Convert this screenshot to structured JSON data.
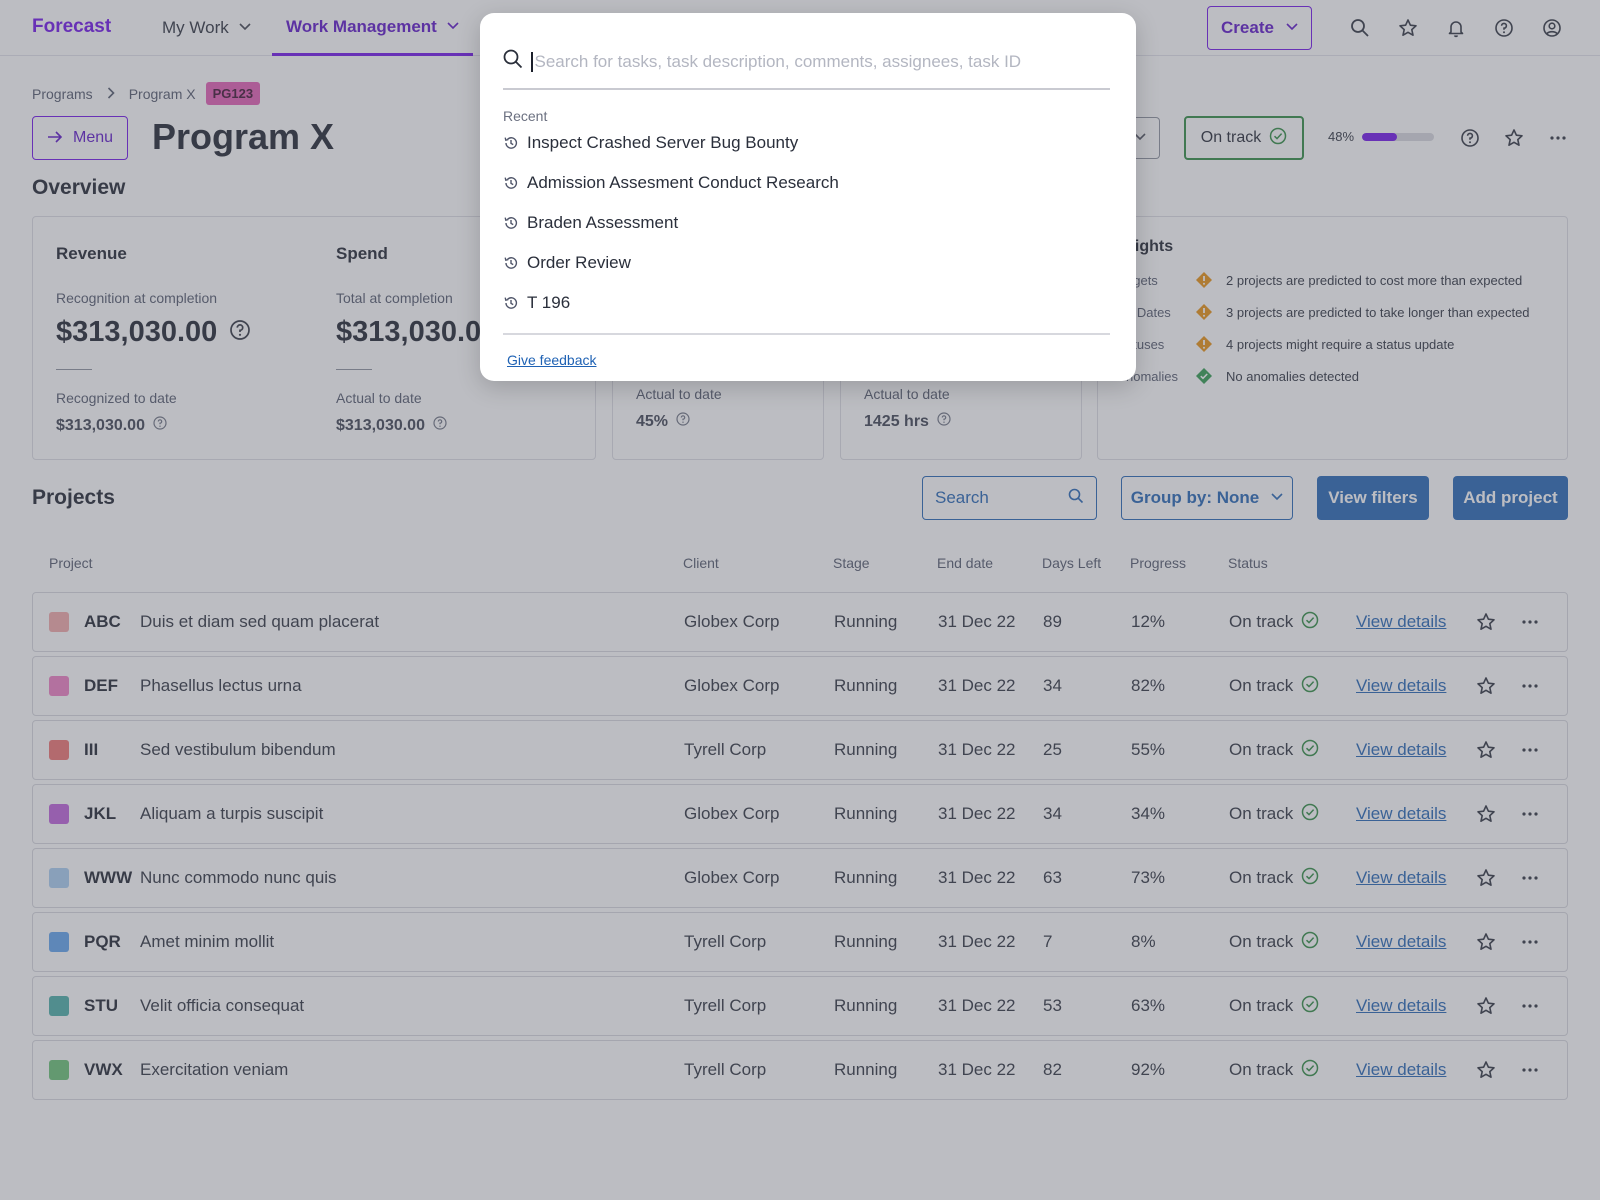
{
  "nav": {
    "logo": "Forecast",
    "tabs": [
      {
        "label": "My Work"
      },
      {
        "label": "Work Management"
      }
    ],
    "create_label": "Create"
  },
  "header": {
    "breadcrumb": {
      "root": "Programs",
      "current": "Program X",
      "badge": "PG123"
    },
    "menu_label": "Menu",
    "title": "Program X",
    "status_label": "On track",
    "progress_label": "48%",
    "progress_value": 48
  },
  "overview": {
    "title": "Overview",
    "revenue": {
      "title": "Revenue",
      "label": "Recognition at completion",
      "value": "$313,030.00",
      "label2": "Recognized to date",
      "value2": "$313,030.00"
    },
    "spend": {
      "title": "Spend",
      "label": "Total at completion",
      "value": "$313,030.0",
      "label2": "Actual to date",
      "value2": "$313,030.00"
    },
    "metric3": {
      "label": "Actual to date",
      "value": "45%"
    },
    "metric4": {
      "label": "Actual to date",
      "value": "1425 hrs"
    },
    "insights": {
      "title": "sights",
      "rows": [
        {
          "category": "dgets",
          "text": "2 projects are predicted to cost more than expected",
          "level": "warning"
        },
        {
          "category": "d Dates",
          "text": "3 projects are predicted to take longer than expected",
          "level": "warning"
        },
        {
          "category": "atuses",
          "text": "4 projects might require a status update",
          "level": "warning"
        },
        {
          "category": "nomalies",
          "text": "No anomalies detected",
          "level": "ok"
        }
      ]
    }
  },
  "projects": {
    "title": "Projects",
    "search_placeholder": "Search",
    "group_by_label": "Group by: None",
    "view_filters_label": "View filters",
    "add_project_label": "Add project",
    "columns": {
      "project": "Project",
      "client": "Client",
      "stage": "Stage",
      "end_date": "End date",
      "days_left": "Days Left",
      "progress": "Progress",
      "status": "Status"
    },
    "rows": [
      {
        "code": "ABC",
        "name": "Duis et diam sed quam placerat",
        "client": "Globex Corp",
        "stage": "Running",
        "end": "31 Dec 22",
        "days": "89",
        "progress": "12%",
        "status": "On track",
        "link": "View details",
        "color": "#f3a7a7"
      },
      {
        "code": "DEF",
        "name": "Phasellus lectus urna",
        "client": "Globex Corp",
        "stage": "Running",
        "end": "31 Dec 22",
        "days": "34",
        "progress": "82%",
        "status": "On track",
        "link": "View details",
        "color": "#f07dc3"
      },
      {
        "code": "III",
        "name": "Sed vestibulum bibendum",
        "client": "Tyrell Corp",
        "stage": "Running",
        "end": "31 Dec 22",
        "days": "25",
        "progress": "55%",
        "status": "On track",
        "link": "View details",
        "color": "#f0706f"
      },
      {
        "code": "JKL",
        "name": "Aliquam a turpis suscipit",
        "client": "Globex Corp",
        "stage": "Running",
        "end": "31 Dec 22",
        "days": "34",
        "progress": "34%",
        "status": "On track",
        "link": "View details",
        "color": "#be5ddb"
      },
      {
        "code": "WWW",
        "name": "Nunc commodo nunc quis",
        "client": "Globex Corp",
        "stage": "Running",
        "end": "31 Dec 22",
        "days": "63",
        "progress": "73%",
        "status": "On track",
        "link": "View details",
        "color": "#a8cdf2"
      },
      {
        "code": "PQR",
        "name": "Amet minim mollit",
        "client": "Tyrell Corp",
        "stage": "Running",
        "end": "31 Dec 22",
        "days": "7",
        "progress": "8%",
        "status": "On track",
        "link": "View details",
        "color": "#5ea2ee"
      },
      {
        "code": "STU",
        "name": "Velit officia consequat",
        "client": "Tyrell Corp",
        "stage": "Running",
        "end": "31 Dec 22",
        "days": "53",
        "progress": "63%",
        "status": "On track",
        "link": "View details",
        "color": "#47ada6"
      },
      {
        "code": "VWX",
        "name": "Exercitation veniam",
        "client": "Tyrell Corp",
        "stage": "Running",
        "end": "31 Dec 22",
        "days": "82",
        "progress": "92%",
        "status": "On track",
        "link": "View details",
        "color": "#67c272"
      }
    ]
  },
  "search_modal": {
    "placeholder": "Search for tasks, task description, comments, assignees, task ID",
    "recent_label": "Recent",
    "recent": [
      "Inspect Crashed Server Bug Bounty",
      "Admission Assesment Conduct Research",
      "Braden Assessment",
      "Order Review",
      "T 196"
    ],
    "feedback_label": "Give feedback"
  },
  "colors": {
    "brand": "#6e0fea",
    "primary": "#1f62b4",
    "success": "#2b8a3e",
    "warning": "#e8900c",
    "pg_badge": "#e35ab3"
  },
  "icons": [
    "search-icon",
    "star-icon",
    "bell-icon",
    "help-icon",
    "account-icon",
    "chevron-down-icon",
    "arrow-right-icon",
    "check-circle-icon",
    "question-icon",
    "more-icon",
    "history-icon",
    "warning-diamond-icon"
  ]
}
